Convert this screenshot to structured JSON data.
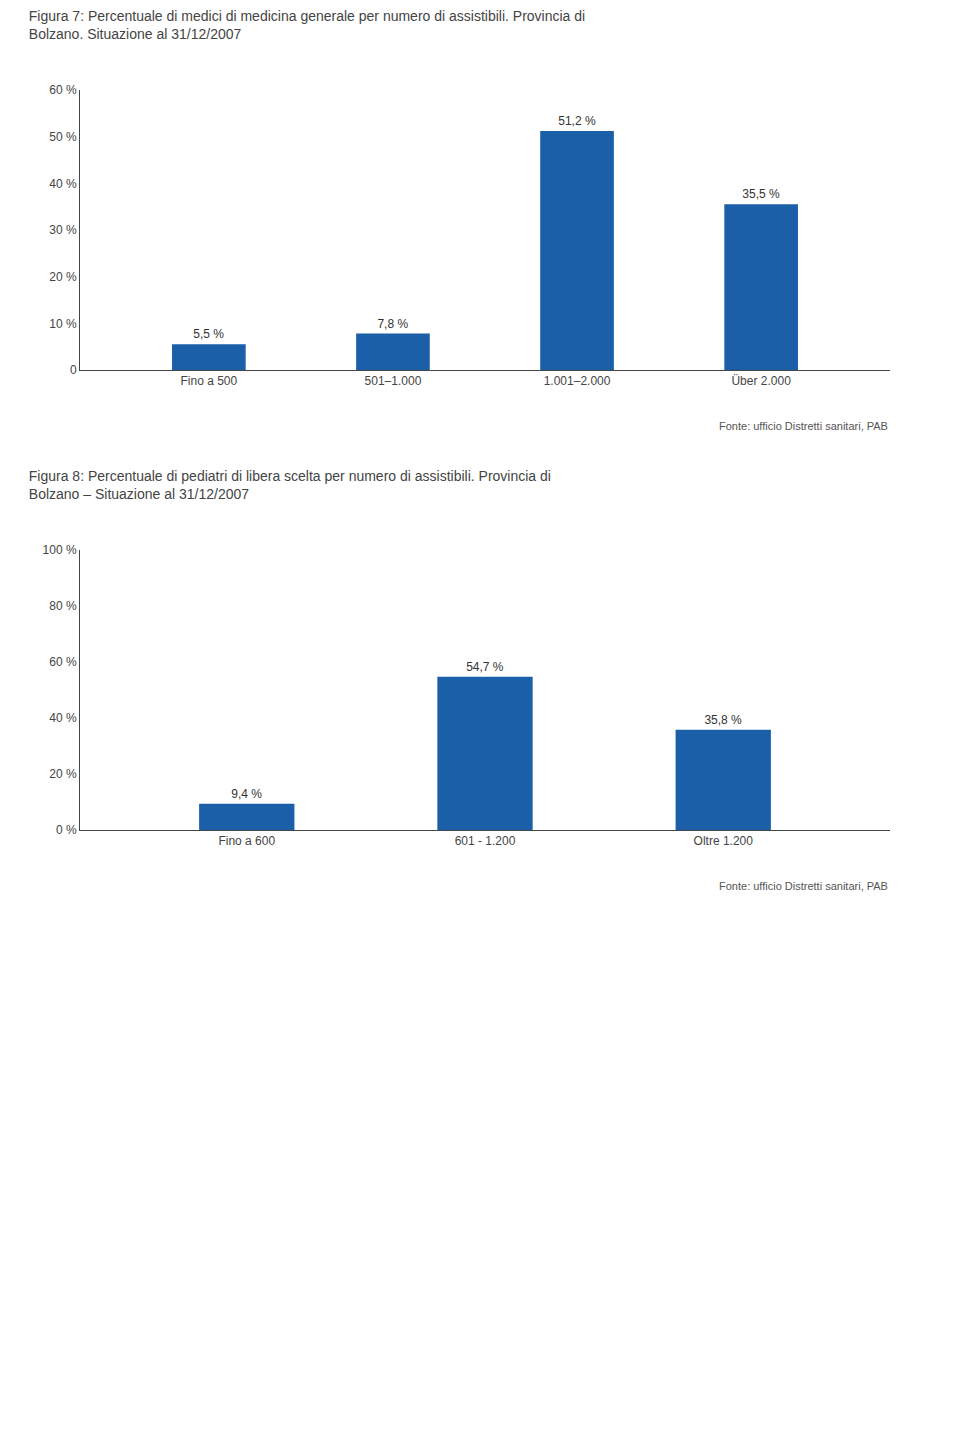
{
  "chart_data": [
    {
      "type": "bar",
      "title": "Figura 7: Percentuale di medici di medicina generale per numero di assistibili. Provincia di Bolzano. Situazione al 31/12/2007",
      "categories": [
        "Fino a 500",
        "501–1.000",
        "1.001–2.000",
        "Über 2.000"
      ],
      "values": [
        5.5,
        7.8,
        51.2,
        35.5
      ],
      "value_labels": [
        "5,5 %",
        "7,8 %",
        "51,2 %",
        "35,5 %"
      ],
      "data_labels": true,
      "color": "#1a5fa8",
      "ylim": [
        0,
        60
      ],
      "yticks": [
        0,
        {
          "value": 10,
          "label": "10 %"
        },
        {
          "value": 20,
          "label": "20 %"
        },
        {
          "value": 30,
          "label": "30 %"
        },
        {
          "value": 40,
          "label": "40 %"
        },
        {
          "value": 50,
          "label": "50 %"
        },
        {
          "value": 60,
          "label": "60 %"
        }
      ],
      "grid": false,
      "annotations": [
        "Fonte: ufficio Distretti sanitari, PAB"
      ]
    },
    {
      "type": "bar",
      "title": "Figura 8: Percentuale di pediatri di libera scelta per numero di assistibili. Provincia di Bolzano – Situazione al 31/12/2007",
      "categories": [
        "Fino a 600",
        "601 - 1.200",
        "Oltre 1.200"
      ],
      "values": [
        9.4,
        54.7,
        35.8
      ],
      "value_labels": [
        "9,4 %",
        "54,7 %",
        "35,8 %"
      ],
      "data_labels": true,
      "color": "#1a5fa8",
      "ylim": [
        0,
        100
      ],
      "yticks": [
        {
          "value": 0,
          "label": "0 %"
        },
        {
          "value": 20,
          "label": "20 %"
        },
        {
          "value": 40,
          "label": "40 %"
        },
        {
          "value": 60,
          "label": "60 %"
        },
        {
          "value": 80,
          "label": "80 %"
        },
        {
          "value": 100,
          "label": "100 %"
        }
      ],
      "grid": false,
      "annotations": [
        "Fonte: ufficio Distretti sanitari, PAB"
      ]
    }
  ]
}
